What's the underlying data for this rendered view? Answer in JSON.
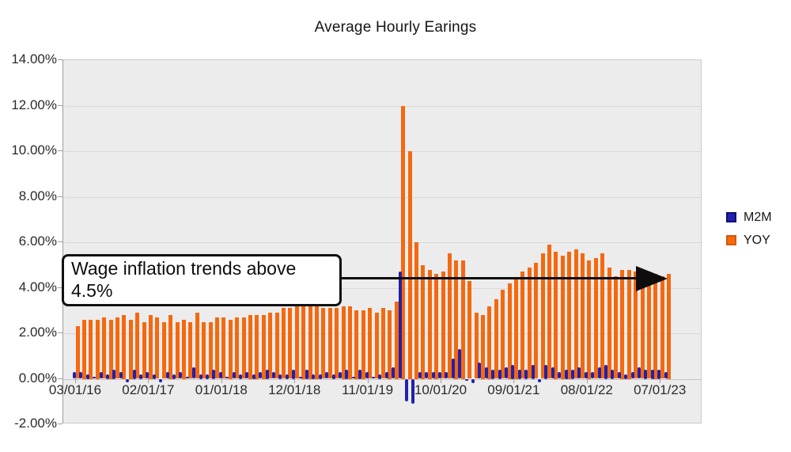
{
  "title": "Average Hourly Earings",
  "legend": {
    "items": [
      {
        "label": "M2M",
        "color": "#2121AC",
        "border": "#0C0C72"
      },
      {
        "label": "YOY",
        "color": "#F4690F",
        "border": "#D85806"
      }
    ]
  },
  "annotation": {
    "line1": "Wage inflation trends above",
    "line2": "4.5%",
    "arrow_level": "4.5%"
  },
  "y_axis": {
    "tick_labels": [
      "14.00%",
      "12.00%",
      "10.00%",
      "8.00%",
      "6.00%",
      "4.00%",
      "2.00%",
      "0.00%",
      "-2.00%"
    ],
    "min": -2,
    "max": 14,
    "step": 2
  },
  "x_axis": {
    "tick_labels": [
      "03/01/16",
      "02/01/17",
      "01/01/18",
      "12/01/18",
      "11/01/19",
      "10/01/20",
      "09/01/21",
      "08/01/22",
      "07/01/23"
    ],
    "tick_indices": [
      0,
      11,
      22,
      33,
      44,
      55,
      66,
      77,
      88
    ]
  },
  "chart_data": {
    "type": "bar",
    "title": "Average Hourly Earings",
    "ylim": [
      -2,
      14
    ],
    "grid": "horizontal",
    "legend_position": "right",
    "plot_background": "#ececec",
    "m2m_color": "#2121AC",
    "yoy_color": "#F4690F",
    "annotation": {
      "text": "Wage inflation trends above 4.5%",
      "arrow_y_value": 4.5
    },
    "categories": [
      "03/01/16",
      "04/01/16",
      "05/01/16",
      "06/01/16",
      "07/01/16",
      "08/01/16",
      "09/01/16",
      "10/01/16",
      "11/01/16",
      "12/01/16",
      "01/01/17",
      "02/01/17",
      "03/01/17",
      "04/01/17",
      "05/01/17",
      "06/01/17",
      "07/01/17",
      "08/01/17",
      "09/01/17",
      "10/01/17",
      "11/01/17",
      "12/01/17",
      "01/01/18",
      "02/01/18",
      "03/01/18",
      "04/01/18",
      "05/01/18",
      "06/01/18",
      "07/01/18",
      "08/01/18",
      "09/01/18",
      "10/01/18",
      "11/01/18",
      "12/01/18",
      "01/01/19",
      "02/01/19",
      "03/01/19",
      "04/01/19",
      "05/01/19",
      "06/01/19",
      "07/01/19",
      "08/01/19",
      "09/01/19",
      "10/01/19",
      "11/01/19",
      "12/01/19",
      "01/01/20",
      "02/01/20",
      "03/01/20",
      "04/01/20",
      "05/01/20",
      "06/01/20",
      "07/01/20",
      "08/01/20",
      "09/01/20",
      "10/01/20",
      "11/01/20",
      "12/01/20",
      "01/01/21",
      "02/01/21",
      "03/01/21",
      "04/01/21",
      "05/01/21",
      "06/01/21",
      "07/01/21",
      "08/01/21",
      "09/01/21",
      "10/01/21",
      "11/01/21",
      "12/01/21",
      "01/01/22",
      "02/01/22",
      "03/01/22",
      "04/01/22",
      "05/01/22",
      "06/01/22",
      "07/01/22",
      "08/01/22",
      "09/01/22",
      "10/01/22",
      "11/01/22",
      "12/01/22",
      "01/01/23",
      "02/01/23",
      "03/01/23",
      "04/01/23",
      "05/01/23",
      "06/01/23",
      "07/01/23",
      "08/01/23"
    ],
    "series": [
      {
        "name": "M2M",
        "color": "#2121AC",
        "values": [
          0.3,
          0.3,
          0.2,
          0.1,
          0.3,
          0.2,
          0.4,
          0.3,
          -0.15,
          0.4,
          0.2,
          0.3,
          0.2,
          -0.15,
          0.3,
          0.2,
          0.3,
          0.1,
          0.5,
          0.2,
          0.2,
          0.4,
          0.3,
          0.1,
          0.3,
          0.2,
          0.3,
          0.2,
          0.3,
          0.4,
          0.3,
          0.2,
          0.2,
          0.4,
          0.1,
          0.4,
          0.2,
          0.2,
          0.3,
          0.2,
          0.3,
          0.4,
          0.1,
          0.4,
          0.3,
          0.1,
          0.2,
          0.3,
          0.5,
          4.7,
          -1.0,
          -1.1,
          0.3,
          0.3,
          0.3,
          0.3,
          0.3,
          0.9,
          1.3,
          -0.1,
          -0.2,
          0.7,
          0.5,
          0.4,
          0.4,
          0.5,
          0.6,
          0.4,
          0.4,
          0.6,
          -0.15,
          0.6,
          0.5,
          0.3,
          0.4,
          0.4,
          0.5,
          0.3,
          0.3,
          0.5,
          0.6,
          0.4,
          0.3,
          0.2,
          0.3,
          0.5,
          0.4,
          0.4,
          0.4,
          0.3
        ]
      },
      {
        "name": "YOY",
        "color": "#F4690F",
        "values": [
          2.3,
          2.6,
          2.6,
          2.6,
          2.7,
          2.6,
          2.7,
          2.8,
          2.6,
          2.9,
          2.5,
          2.8,
          2.7,
          2.5,
          2.8,
          2.5,
          2.6,
          2.5,
          2.9,
          2.5,
          2.5,
          2.7,
          2.7,
          2.6,
          2.7,
          2.7,
          2.8,
          2.8,
          2.8,
          2.9,
          2.9,
          3.1,
          3.1,
          3.3,
          3.2,
          3.4,
          3.2,
          3.1,
          3.1,
          3.1,
          3.2,
          3.2,
          3.0,
          3.0,
          3.1,
          2.9,
          3.1,
          3.0,
          3.4,
          12.0,
          10.0,
          6.0,
          5.0,
          4.8,
          4.6,
          4.7,
          5.5,
          5.2,
          5.2,
          4.3,
          2.9,
          2.8,
          3.2,
          3.5,
          3.9,
          4.2,
          4.4,
          4.7,
          4.9,
          5.1,
          5.5,
          5.9,
          5.6,
          5.4,
          5.6,
          5.7,
          5.5,
          5.2,
          5.3,
          5.5,
          4.9,
          4.5,
          4.8,
          4.8,
          4.7,
          4.7,
          4.7,
          4.6,
          4.5,
          4.6
        ]
      }
    ]
  }
}
